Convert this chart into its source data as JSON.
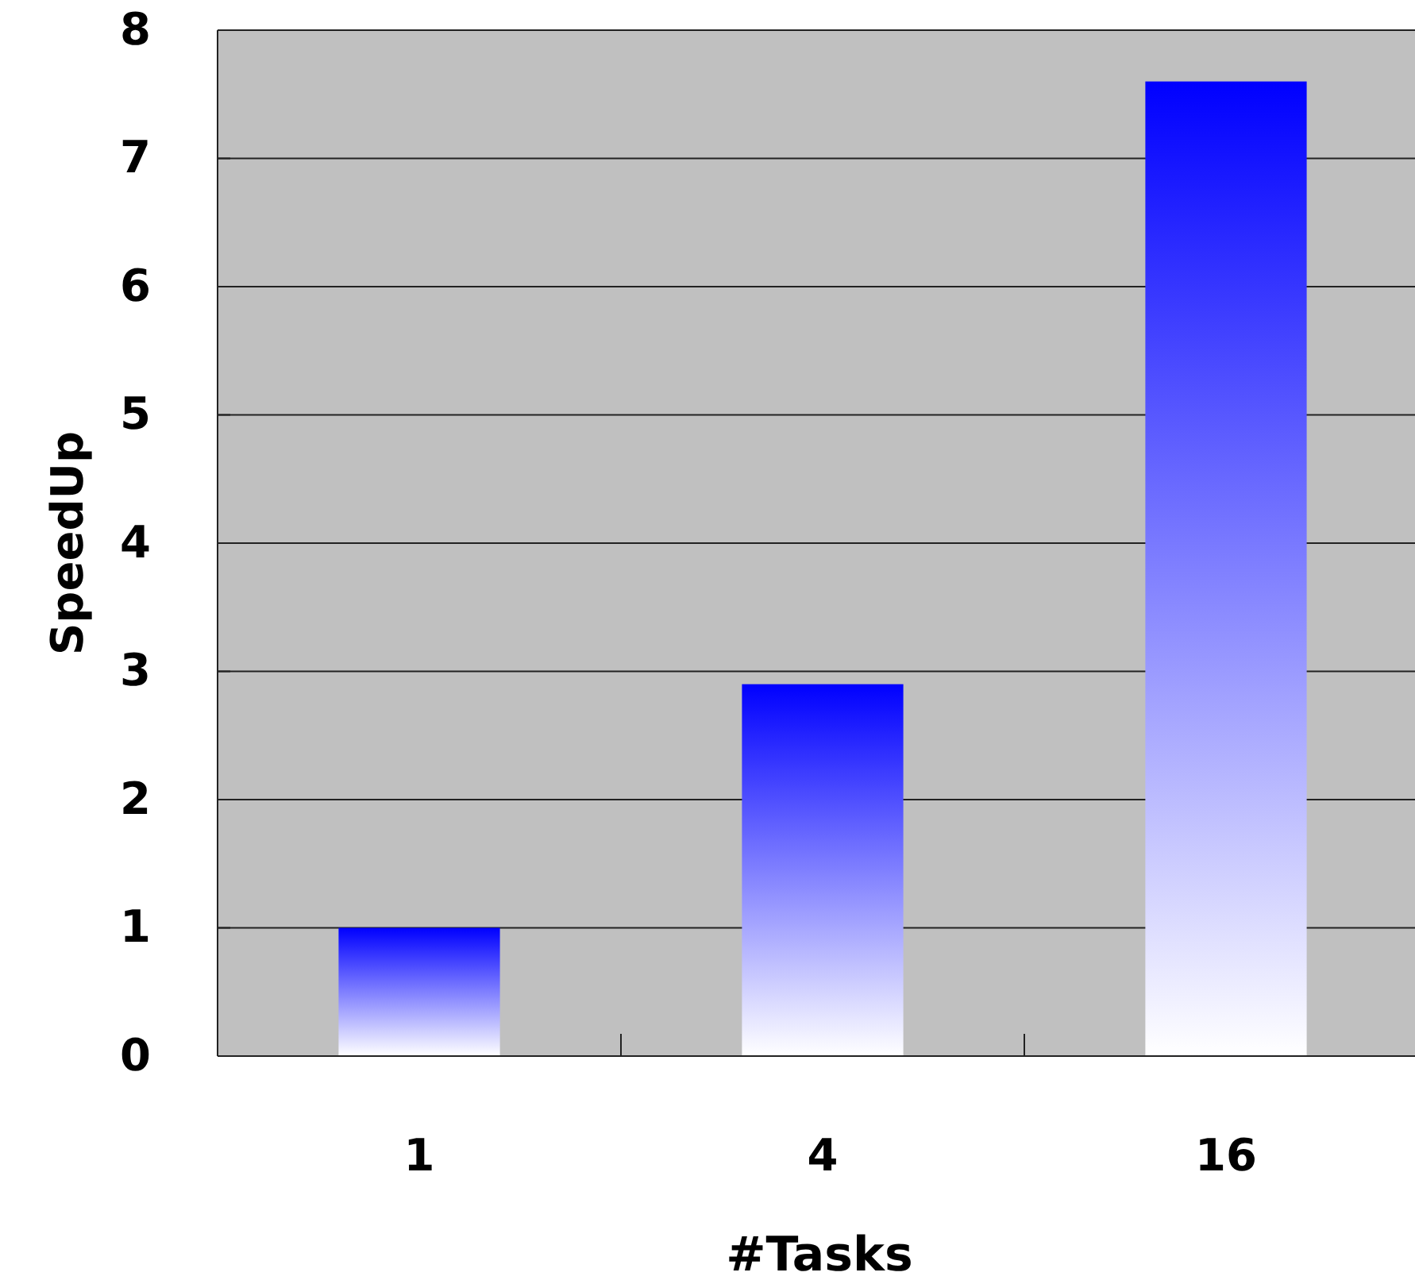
{
  "chart_data": {
    "type": "bar",
    "xlabel": "#Tasks",
    "ylabel": "SpeedUp",
    "categories": [
      "1",
      "4",
      "16"
    ],
    "values": [
      1,
      2.9,
      7.6
    ],
    "color": "#0000ff",
    "ylim": [
      0,
      8
    ],
    "yticks": [
      0,
      1,
      2,
      3,
      4,
      5,
      6,
      7,
      8
    ],
    "grid": "y"
  }
}
